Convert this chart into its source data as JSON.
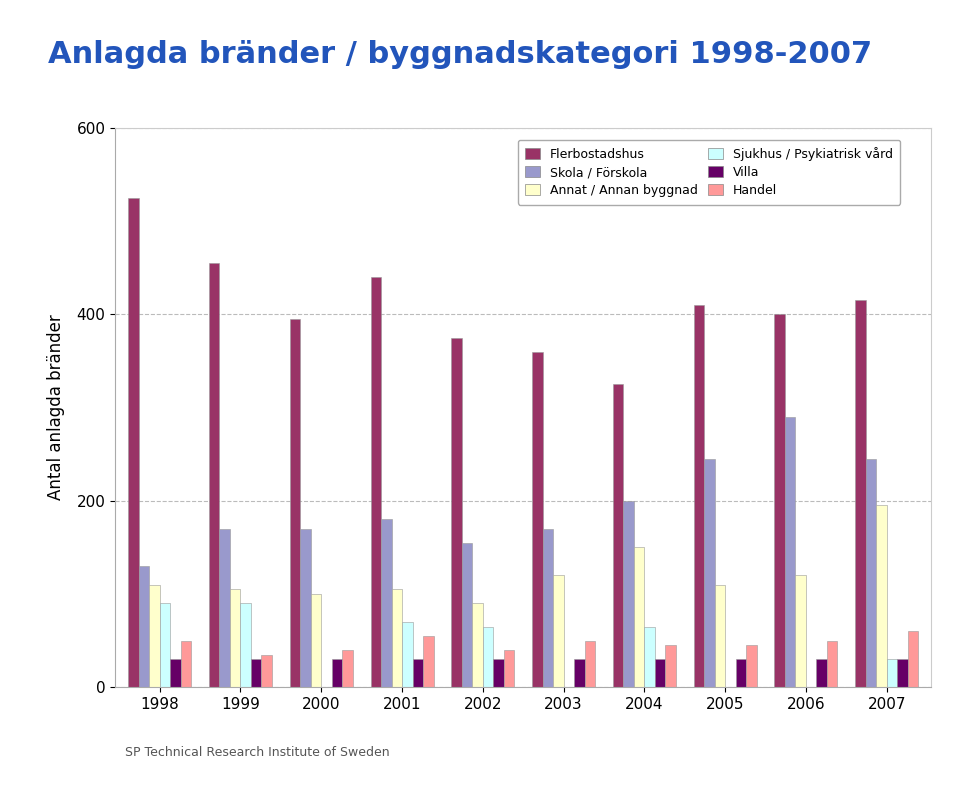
{
  "title": "Anlagda bränder / byggnadskategori 1998-2007",
  "ylabel": "Antal anlagda bränder",
  "years": [
    1998,
    1999,
    2000,
    2001,
    2002,
    2003,
    2004,
    2005,
    2006,
    2007
  ],
  "series_order": [
    "Flerbostadshus",
    "Skola / Förskola",
    "Annat / Annan byggnad",
    "Sjukhus / Psykiatrisk vård",
    "Villa",
    "Handel"
  ],
  "series": {
    "Flerbostadshus": [
      525,
      455,
      395,
      440,
      375,
      360,
      325,
      410,
      400,
      415
    ],
    "Skola / Förskola": [
      130,
      170,
      170,
      180,
      155,
      170,
      200,
      245,
      290,
      245
    ],
    "Annat / Annan byggnad": [
      110,
      105,
      100,
      105,
      90,
      120,
      150,
      110,
      120,
      195
    ],
    "Sjukhus / Psykiatrisk vård": [
      90,
      90,
      0,
      70,
      65,
      0,
      65,
      0,
      0,
      30
    ],
    "Villa": [
      30,
      30,
      30,
      30,
      30,
      30,
      30,
      30,
      30,
      30
    ],
    "Handel": [
      50,
      35,
      40,
      55,
      40,
      50,
      45,
      45,
      50,
      60
    ]
  },
  "colors": {
    "Flerbostadshus": "#993366",
    "Skola / Förskola": "#9999CC",
    "Annat / Annan byggnad": "#FFFFCC",
    "Sjukhus / Psykiatrisk vård": "#CCFFFF",
    "Villa": "#660066",
    "Handel": "#FF9999"
  },
  "legend_order_col1": [
    "Flerbostadshus",
    "Annat / Annan byggnad",
    "Villa"
  ],
  "legend_order_col2": [
    "Skola / Förskola",
    "Sjukhus / Psykiatrisk vård",
    "Handel"
  ],
  "ylim": [
    0,
    600
  ],
  "yticks": [
    0,
    200,
    400,
    600
  ],
  "bar_width": 0.13,
  "background_color": "#ffffff",
  "grid_color": "#aaaaaa",
  "title_color": "#2255BB",
  "title_fontsize": 22,
  "axis_fontsize": 11,
  "ylabel_fontsize": 12,
  "legend_fontsize": 9,
  "sp_text": "SP Technical Research Institute of Sweden"
}
